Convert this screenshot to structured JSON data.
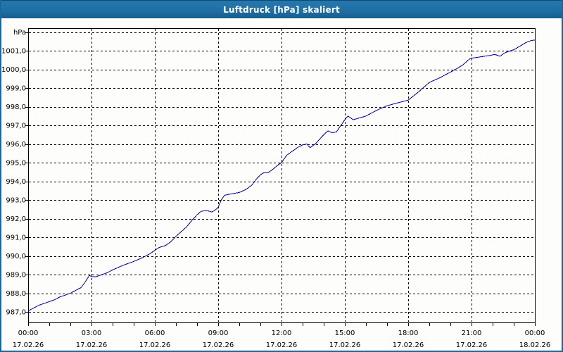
{
  "window": {
    "title": "Luftdruck [hPa] skaliert"
  },
  "colors": {
    "titlebar_top": "#2478af",
    "titlebar_bottom": "#175d8e",
    "frame": "#1a689b",
    "background": "#fdfdfc",
    "grid": "#000000",
    "axis": "#000000",
    "text": "#000000",
    "series_line": "#0000a0",
    "title_text": "#ffffff"
  },
  "chart_data": {
    "type": "line",
    "title": "Luftdruck [hPa] skaliert",
    "unit_label": "hPa",
    "ylabel": "hPa",
    "xlabel": "",
    "ylim": [
      987,
      1002
    ],
    "y_tick_step": 1,
    "y_tick_labels": [
      "1001,0",
      "1000,0",
      "999,0",
      "998,0",
      "997,0",
      "996,0",
      "995,0",
      "994,0",
      "993,0",
      "992,0",
      "991,0",
      "990,0",
      "989,0",
      "988,0",
      "987,0"
    ],
    "xlim_hours": [
      0,
      24
    ],
    "x_major_step_hours": 3,
    "x_minor_step_hours": 1,
    "x_tick_time_labels": [
      "00:00",
      "03:00",
      "06:00",
      "09:00",
      "12:00",
      "15:00",
      "18:00",
      "21:00",
      "00:00"
    ],
    "x_tick_date_labels": [
      "17.02.26",
      "17.02.26",
      "17.02.26",
      "17.02.26",
      "17.02.26",
      "17.02.26",
      "17.02.26",
      "17.02.26",
      "18.02.26"
    ],
    "grid": "dashed",
    "legend": "none",
    "series": [
      {
        "name": "Luftdruck [hPa]",
        "x_hours": [
          0,
          0.25,
          0.5,
          0.75,
          1,
          1.25,
          1.5,
          1.75,
          2,
          2.25,
          2.5,
          2.7,
          2.9,
          3.05,
          3.25,
          3.5,
          3.75,
          4,
          4.3,
          4.5,
          4.75,
          5,
          5.3,
          5.5,
          5.75,
          6,
          6.2,
          6.5,
          6.75,
          7,
          7.25,
          7.5,
          7.75,
          8,
          8.2,
          8.5,
          8.7,
          8.85,
          9,
          9.15,
          9.3,
          9.5,
          9.75,
          10,
          10.3,
          10.6,
          10.8,
          11,
          11.15,
          11.35,
          11.6,
          11.8,
          12,
          12.25,
          12.5,
          12.75,
          13,
          13.2,
          13.35,
          13.6,
          14,
          14.2,
          14.4,
          14.6,
          15,
          15.15,
          15.4,
          15.7,
          16,
          16.5,
          17,
          17.5,
          18,
          18.5,
          19,
          19.5,
          20,
          20.4,
          20.6,
          20.9,
          21,
          21.3,
          21.6,
          21.9,
          22.1,
          22.35,
          22.6,
          23,
          23.3,
          23.6,
          23.85,
          24
        ],
        "values": [
          987.05,
          987.2,
          987.35,
          987.45,
          987.55,
          987.65,
          987.8,
          987.9,
          988.0,
          988.15,
          988.3,
          988.6,
          988.95,
          988.88,
          988.9,
          989.0,
          989.1,
          989.25,
          989.4,
          989.5,
          989.6,
          989.7,
          989.85,
          989.95,
          990.1,
          990.3,
          990.45,
          990.55,
          990.75,
          991.05,
          991.3,
          991.55,
          991.9,
          992.2,
          992.4,
          992.42,
          992.35,
          992.45,
          992.6,
          993.0,
          993.25,
          993.3,
          993.35,
          993.4,
          993.55,
          993.8,
          994.1,
          994.35,
          994.45,
          994.45,
          994.65,
          994.85,
          995.0,
          995.4,
          995.6,
          995.8,
          995.95,
          996.0,
          995.8,
          996.0,
          996.5,
          996.7,
          996.6,
          996.65,
          997.3,
          997.5,
          997.3,
          997.4,
          997.5,
          997.8,
          998.05,
          998.2,
          998.35,
          998.8,
          999.3,
          999.55,
          999.85,
          1000.1,
          1000.25,
          1000.55,
          1000.6,
          1000.65,
          1000.7,
          1000.75,
          1000.8,
          1000.7,
          1000.9,
          1001.05,
          1001.25,
          1001.45,
          1001.55,
          1001.57
        ]
      }
    ]
  }
}
